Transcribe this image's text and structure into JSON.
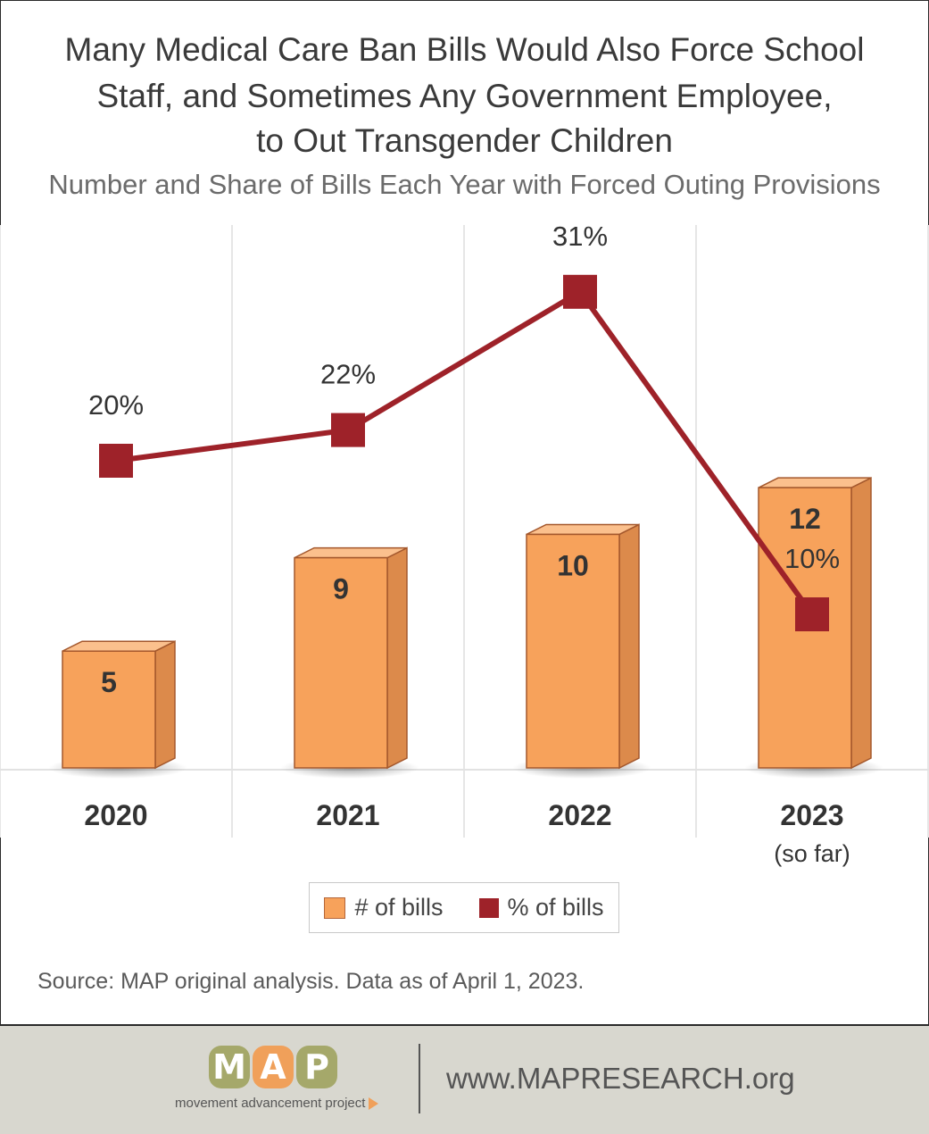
{
  "title_lines": [
    "Many Medical Care Ban Bills Would Also Force School",
    "Staff, and Sometimes Any Government Employee,",
    "to Out Transgender Children"
  ],
  "subtitle": "Number and Share of Bills Each Year with Forced Outing Provisions",
  "chart_data": {
    "type": "bar",
    "title": "Many Medical Care Ban Bills Would Also Force School Staff, and Sometimes Any Government Employee, to Out Transgender Children",
    "subtitle": "Number and Share of Bills Each Year with Forced Outing Provisions",
    "categories": [
      "2020",
      "2021",
      "2022",
      "2023"
    ],
    "category_notes": [
      "",
      "",
      "",
      "(so far)"
    ],
    "series": [
      {
        "name": "# of bills",
        "type": "bar",
        "values": [
          5,
          9,
          10,
          12
        ],
        "labels": [
          "5",
          "9",
          "10",
          "12"
        ],
        "color": "#f7a25b"
      },
      {
        "name": "% of bills",
        "type": "line",
        "values": [
          20,
          22,
          31,
          10
        ],
        "labels": [
          "20%",
          "22%",
          "31%",
          "10%"
        ],
        "color": "#9e2229"
      }
    ],
    "bars_ylim": [
      0,
      13
    ],
    "percent_ylim": [
      0,
      40
    ],
    "legend_position": "bottom-center",
    "grid": "vertical category separators"
  },
  "source": "Source: MAP original analysis. Data as of April 1, 2023.",
  "footer": {
    "logo_letters": [
      "M",
      "A",
      "P"
    ],
    "logo_tagline": "movement advancement project",
    "url": "www.MAPRESEARCH.org"
  }
}
